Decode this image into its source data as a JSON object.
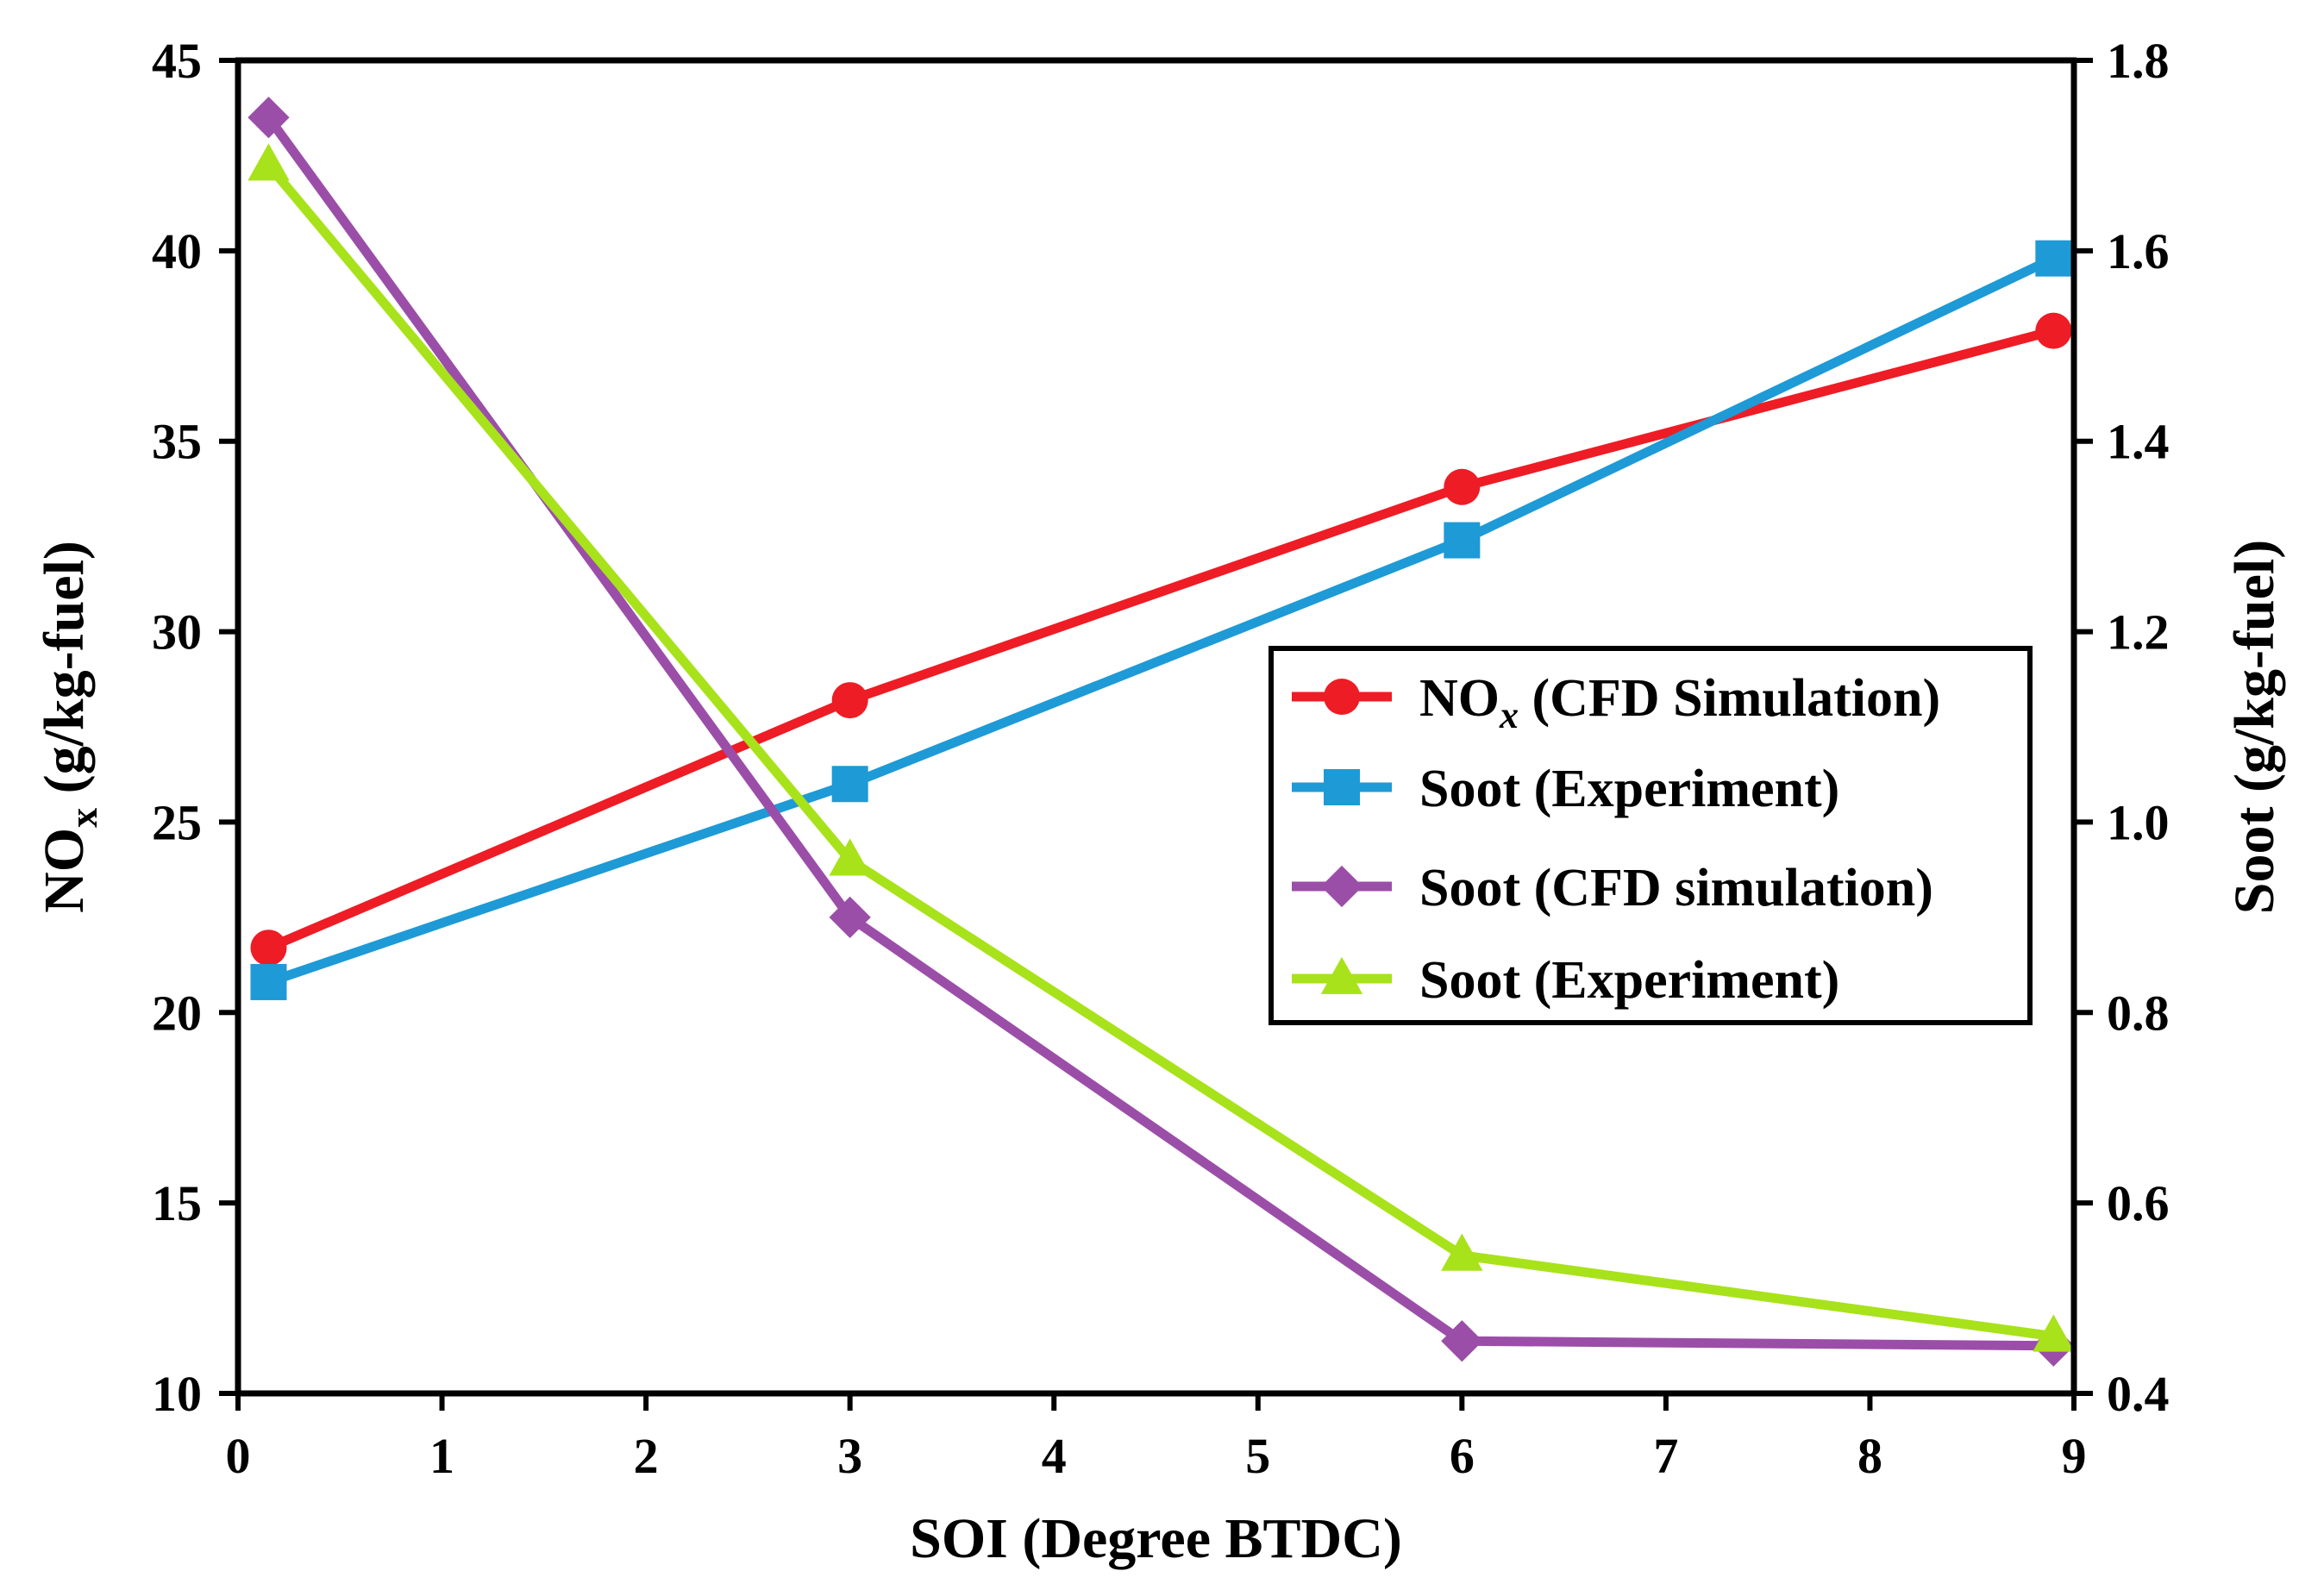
{
  "chart_data": {
    "type": "line",
    "title": "",
    "xlabel": "SOI (Degree BTDC)",
    "ylabel_left_main": "NO",
    "ylabel_left_sub": "x",
    "ylabel_left_tail": " (g/kg-fuel)",
    "ylabel_right": "Soot (g/kg-fuel)",
    "xlim": [
      0,
      9
    ],
    "ylim_left": [
      10,
      45
    ],
    "ylim_right": [
      0.4,
      1.8
    ],
    "x_ticks": [
      "0",
      "1",
      "2",
      "3",
      "4",
      "5",
      "6",
      "7",
      "8",
      "9"
    ],
    "y_ticks_left": [
      "10",
      "15",
      "20",
      "25",
      "30",
      "35",
      "40",
      "45"
    ],
    "y_ticks_right": [
      "0.4",
      "0.6",
      "0.8",
      "1.0",
      "1.2",
      "1.4",
      "1.6",
      "1.8"
    ],
    "grid": false,
    "legend_position": "center-right",
    "series": [
      {
        "name": "NOx (CFD Simulation)",
        "legend_main": "NO",
        "legend_sub": "x",
        "legend_tail": " (CFD Simulation)",
        "axis": "left",
        "color": "#ee1c25",
        "marker": "circle",
        "x": [
          0.15,
          3.0,
          6.0,
          8.9
        ],
        "y": [
          21.7,
          28.2,
          33.8,
          37.9
        ]
      },
      {
        "name": "Soot (Experiment)",
        "legend_main": "Soot (Experiment)",
        "axis": "left",
        "color": "#1e9ad6",
        "marker": "square",
        "x": [
          0.15,
          3.0,
          6.0,
          8.9
        ],
        "y": [
          20.8,
          26.0,
          32.4,
          39.8
        ]
      },
      {
        "name": "Soot (CFD simulation)",
        "legend_main": "Soot (CFD simulation)",
        "axis": "right",
        "color": "#9b4ea8",
        "marker": "diamond",
        "x": [
          0.15,
          3.0,
          6.0,
          8.9
        ],
        "y": [
          1.74,
          0.9,
          0.455,
          0.45
        ]
      },
      {
        "name": "Soot (Experiment)",
        "legend_main": "Soot (Experiment)",
        "axis": "right",
        "color": "#a8e21a",
        "marker": "triangle",
        "x": [
          0.15,
          3.0,
          6.0,
          8.9
        ],
        "y": [
          1.69,
          0.96,
          0.545,
          0.46
        ]
      }
    ]
  }
}
